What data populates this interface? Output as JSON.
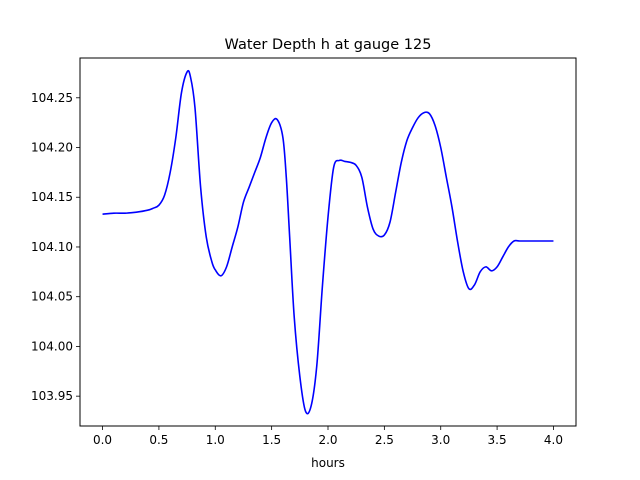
{
  "chart_data": {
    "type": "line",
    "title": "Water Depth h at gauge 125",
    "xlabel": "hours",
    "ylabel": "",
    "xlim": [
      -0.2,
      4.2
    ],
    "ylim": [
      103.92,
      104.29
    ],
    "xticks": [
      0.0,
      0.5,
      1.0,
      1.5,
      2.0,
      2.5,
      3.0,
      3.5,
      4.0
    ],
    "xtick_labels": [
      "0.0",
      "0.5",
      "1.0",
      "1.5",
      "2.0",
      "2.5",
      "3.0",
      "3.5",
      "4.0"
    ],
    "yticks": [
      103.95,
      104.0,
      104.05,
      104.1,
      104.15,
      104.2,
      104.25
    ],
    "ytick_labels": [
      "103.95",
      "104.00",
      "104.05",
      "104.10",
      "104.15",
      "104.20",
      "104.25"
    ],
    "grid": false,
    "series": [
      {
        "color": "#0000ff",
        "x": [
          0.0,
          0.1,
          0.2,
          0.3,
          0.4,
          0.45,
          0.5,
          0.55,
          0.6,
          0.65,
          0.7,
          0.75,
          0.78,
          0.82,
          0.87,
          0.92,
          0.97,
          1.0,
          1.05,
          1.1,
          1.15,
          1.2,
          1.25,
          1.3,
          1.35,
          1.4,
          1.45,
          1.5,
          1.55,
          1.6,
          1.63,
          1.66,
          1.7,
          1.75,
          1.8,
          1.85,
          1.9,
          1.95,
          2.0,
          2.05,
          2.1,
          2.15,
          2.2,
          2.25,
          2.3,
          2.35,
          2.4,
          2.45,
          2.5,
          2.55,
          2.6,
          2.65,
          2.7,
          2.75,
          2.8,
          2.85,
          2.9,
          2.95,
          3.0,
          3.05,
          3.1,
          3.15,
          3.2,
          3.25,
          3.3,
          3.35,
          3.4,
          3.45,
          3.5,
          3.55,
          3.6,
          3.65,
          3.7,
          3.75,
          3.8,
          3.85,
          3.9,
          3.95,
          4.0
        ],
        "y": [
          104.133,
          104.134,
          104.134,
          104.135,
          104.137,
          104.139,
          104.142,
          104.152,
          104.175,
          104.21,
          104.255,
          104.276,
          104.271,
          104.24,
          104.16,
          104.11,
          104.085,
          104.077,
          104.071,
          104.08,
          104.1,
          104.12,
          104.145,
          104.16,
          104.175,
          104.19,
          104.21,
          104.225,
          104.228,
          104.21,
          104.17,
          104.11,
          104.03,
          103.97,
          103.935,
          103.94,
          103.98,
          104.06,
          104.13,
          104.18,
          104.187,
          104.186,
          104.185,
          104.182,
          104.17,
          104.14,
          104.118,
          104.111,
          104.112,
          104.125,
          104.155,
          104.185,
          104.207,
          104.22,
          104.23,
          104.235,
          104.234,
          104.222,
          104.2,
          104.17,
          104.14,
          104.105,
          104.075,
          104.058,
          104.062,
          104.075,
          104.08,
          104.076,
          104.08,
          104.09,
          104.1,
          104.106,
          104.106,
          104.106,
          104.106,
          104.106,
          104.106,
          104.106,
          104.106
        ]
      }
    ]
  }
}
